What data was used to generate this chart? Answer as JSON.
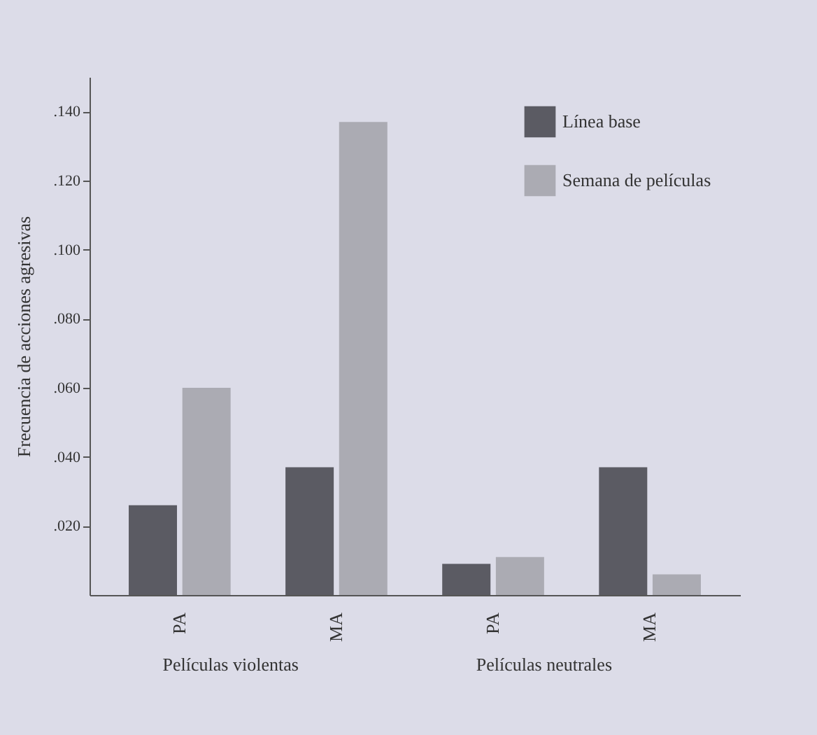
{
  "chart_data": {
    "type": "bar",
    "ylabel": "Frecuencia de acciones agresivas",
    "categories": [
      "PA",
      "MA",
      "PA",
      "MA"
    ],
    "series": [
      {
        "name": "Línea base",
        "color": "#5b5b63",
        "values": [
          0.026,
          0.037,
          0.009,
          0.037
        ]
      },
      {
        "name": "Semana de películas",
        "color": "#ababb3",
        "values": [
          0.06,
          0.137,
          0.011,
          0.006
        ]
      }
    ],
    "ylim": [
      0,
      0.15
    ],
    "yticks": [
      {
        "value": 0.02,
        "label": ".020"
      },
      {
        "value": 0.04,
        "label": ".040"
      },
      {
        "value": 0.06,
        "label": ".060"
      },
      {
        "value": 0.08,
        "label": ".080"
      },
      {
        "value": 0.1,
        "label": ".100"
      },
      {
        "value": 0.12,
        "label": ".120"
      },
      {
        "value": 0.14,
        "label": ".140"
      }
    ],
    "annotations": [
      "Películas violentas",
      "Películas neutrales"
    ],
    "legend": "top right",
    "grid": false
  }
}
